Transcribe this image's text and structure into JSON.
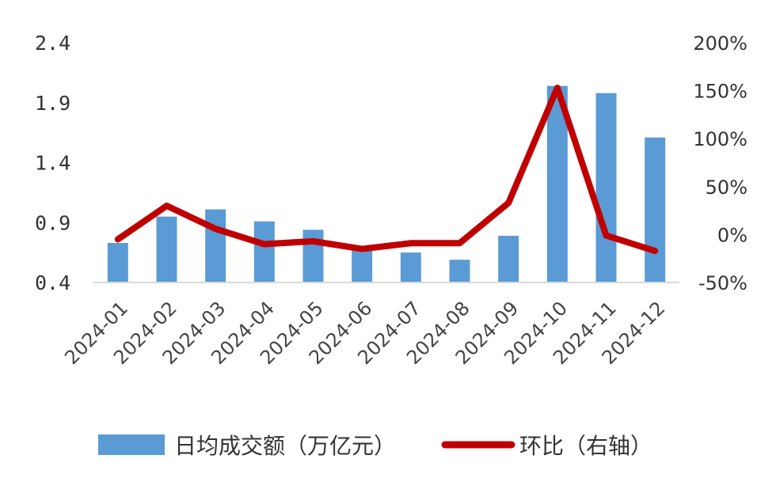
{
  "chart_data": {
    "type": "bar",
    "categories": [
      "2024-01",
      "2024-02",
      "2024-03",
      "2024-04",
      "2024-05",
      "2024-06",
      "2024-07",
      "2024-08",
      "2024-09",
      "2024-10",
      "2024-11",
      "2024-12"
    ],
    "series": [
      {
        "name": "日均成交额（万亿元）",
        "type": "bar",
        "axis": "left",
        "color": "#5b9bd5",
        "values": [
          0.73,
          0.95,
          1.01,
          0.91,
          0.84,
          0.7,
          0.65,
          0.59,
          0.79,
          2.04,
          1.98,
          1.61
        ]
      },
      {
        "name": "环比（右轴）",
        "type": "line",
        "axis": "right",
        "color": "#c00000",
        "values": [
          -5,
          30,
          6,
          -10,
          -7,
          -15,
          -9,
          -9,
          33,
          153,
          -1,
          -17
        ]
      }
    ],
    "y_left": {
      "min": 0.4,
      "max": 2.4,
      "ticks": [
        "2.4",
        "1.9",
        "1.4",
        "0.9",
        "0.4"
      ],
      "tick_values": [
        2.4,
        1.9,
        1.4,
        0.9,
        0.4
      ]
    },
    "y_right": {
      "min": -50,
      "max": 200,
      "ticks": [
        "200%",
        "150%",
        "100%",
        "50%",
        "0%",
        "-50%"
      ],
      "tick_values": [
        200,
        150,
        100,
        50,
        0,
        -50
      ]
    },
    "legend_position": "bottom",
    "grid": false
  }
}
